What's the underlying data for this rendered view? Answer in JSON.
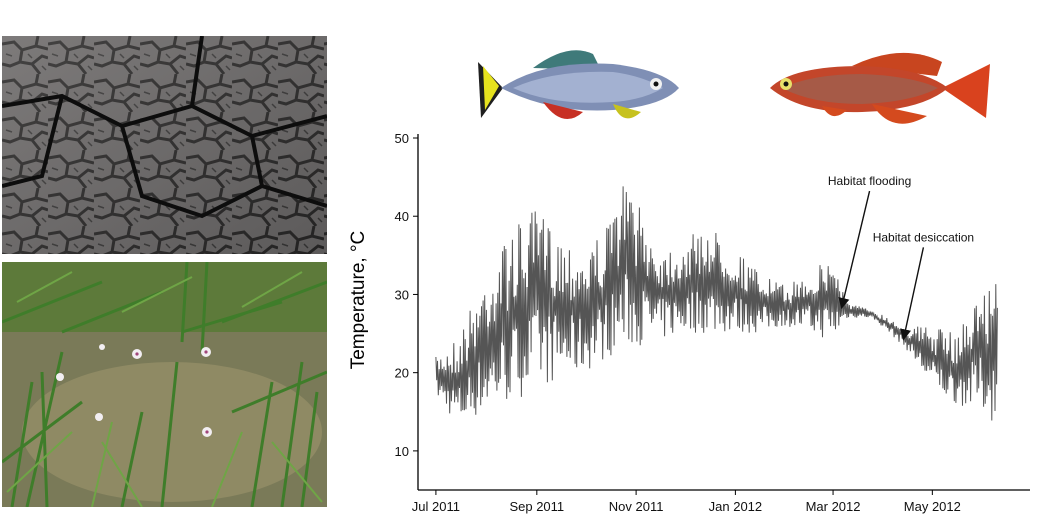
{
  "photos": [
    {
      "name": "dry-cracked-mud",
      "kind": "natural-photo"
    },
    {
      "name": "flooded-grass-pool",
      "kind": "natural-photo"
    }
  ],
  "fish": [
    {
      "name": "male-blue-killifish"
    },
    {
      "name": "male-red-killifish"
    }
  ],
  "colors": {
    "series": "#555555",
    "axis": "#000000",
    "annotation": "#111111"
  },
  "chart_data": {
    "type": "line",
    "title": "",
    "xlabel": "",
    "ylabel": "Temperature, °C",
    "ylim": [
      5,
      50
    ],
    "yticks": [
      10,
      20,
      30,
      40,
      50
    ],
    "xlim": [
      "2011-06-20",
      "2012-06-30"
    ],
    "xticks": [
      {
        "date": "2011-07-01",
        "label": "Jul 2011"
      },
      {
        "date": "2011-09-01",
        "label": "Sep 2011"
      },
      {
        "date": "2011-11-01",
        "label": "Nov 2011"
      },
      {
        "date": "2012-01-01",
        "label": "Jan 2012"
      },
      {
        "date": "2012-03-01",
        "label": "Mar 2012"
      },
      {
        "date": "2012-05-01",
        "label": "May 2012"
      }
    ],
    "grid": false,
    "legend": "none",
    "series": [
      {
        "points": [
          {
            "date": "2011-07-01",
            "min": 17,
            "max": 22
          },
          {
            "date": "2011-07-15",
            "min": 13,
            "max": 25
          },
          {
            "date": "2011-08-01",
            "min": 15,
            "max": 33
          },
          {
            "date": "2011-08-15",
            "min": 16,
            "max": 38
          },
          {
            "date": "2011-09-01",
            "min": 18,
            "max": 41
          },
          {
            "date": "2011-09-15",
            "min": 19,
            "max": 38
          },
          {
            "date": "2011-10-01",
            "min": 20,
            "max": 36
          },
          {
            "date": "2011-10-15",
            "min": 22,
            "max": 39
          },
          {
            "date": "2011-10-25",
            "min": 23,
            "max": 45
          },
          {
            "date": "2011-11-15",
            "min": 24,
            "max": 36
          },
          {
            "date": "2011-12-01",
            "min": 25,
            "max": 37
          },
          {
            "date": "2011-12-15",
            "min": 25,
            "max": 39
          },
          {
            "date": "2012-01-01",
            "min": 25,
            "max": 36
          },
          {
            "date": "2012-01-15",
            "min": 25,
            "max": 33
          },
          {
            "date": "2012-02-01",
            "min": 26,
            "max": 31
          },
          {
            "date": "2012-02-15",
            "min": 25,
            "max": 33
          },
          {
            "date": "2012-03-01",
            "min": 24,
            "max": 35
          },
          {
            "date": "2012-03-10",
            "min": 27,
            "max": 29
          },
          {
            "date": "2012-03-25",
            "min": 27,
            "max": 28
          },
          {
            "date": "2012-04-05",
            "min": 25,
            "max": 27
          },
          {
            "date": "2012-04-15",
            "min": 23,
            "max": 26
          },
          {
            "date": "2012-05-01",
            "min": 18,
            "max": 26
          },
          {
            "date": "2012-05-15",
            "min": 16,
            "max": 25
          },
          {
            "date": "2012-06-01",
            "min": 15,
            "max": 31
          },
          {
            "date": "2012-06-10",
            "min": 13,
            "max": 32
          }
        ]
      }
    ],
    "annotations": [
      {
        "text": "Habitat flooding",
        "date": "2012-03-05",
        "value": 28
      },
      {
        "text": "Habitat desiccation",
        "date": "2012-04-12",
        "value": 24
      }
    ]
  }
}
